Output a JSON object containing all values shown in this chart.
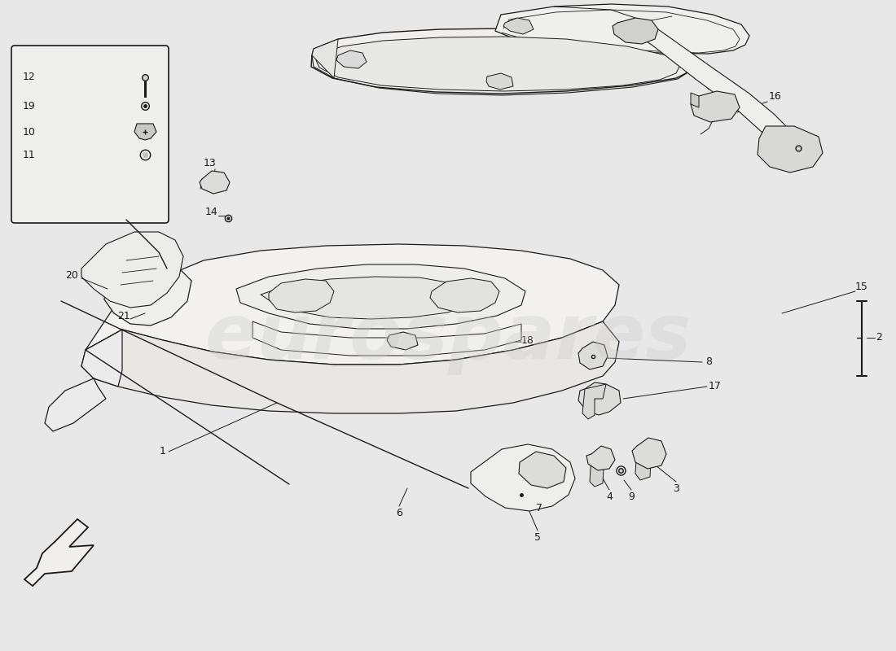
{
  "bg_color": "#e8e8e8",
  "line_color": "#1a1a1a",
  "fill_color": "#f0efed",
  "watermark": "eurospares",
  "watermark_color": "#cccccc"
}
